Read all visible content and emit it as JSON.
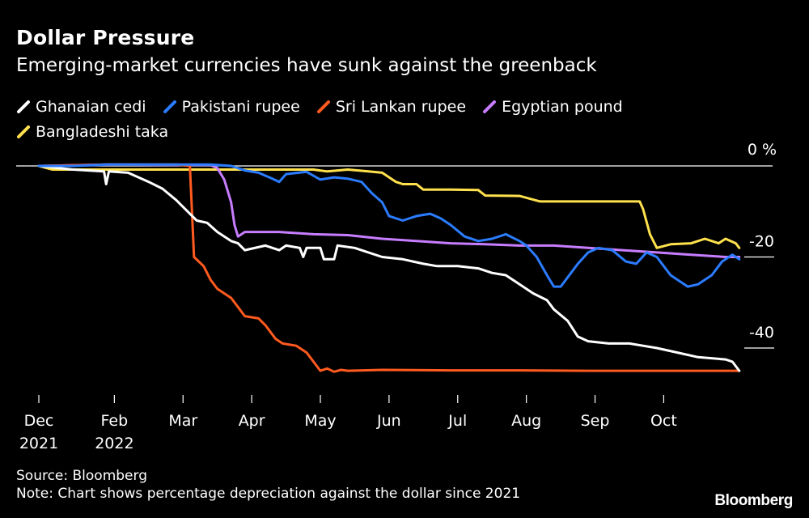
{
  "header": {
    "title": "Dollar Pressure",
    "subtitle": "Emerging-market currencies have sunk against the greenback"
  },
  "footer": {
    "source": "Source: Bloomberg",
    "note": "Note: Chart shows percentage depreciation against the dollar since 2021",
    "brand": "Bloomberg"
  },
  "chart_data": {
    "type": "line",
    "title": "Dollar Pressure",
    "subtitle": "Emerging-market currencies have sunk against the greenback",
    "xlabel": "",
    "ylabel": "%",
    "ylim": [
      -50,
      0
    ],
    "xlim": [
      0,
      10.45
    ],
    "grid": false,
    "legend_position": "top-left",
    "y_ticks": [
      {
        "value": 0,
        "label": "0 %"
      },
      {
        "value": -20,
        "label": "-20"
      },
      {
        "value": -40,
        "label": "-40"
      }
    ],
    "x_ticks": [
      {
        "value": 0,
        "label": "Dec",
        "sublabel": "2021"
      },
      {
        "value": 1.1,
        "label": "Feb",
        "sublabel": "2022"
      },
      {
        "value": 2.1,
        "label": "Mar",
        "sublabel": ""
      },
      {
        "value": 3.1,
        "label": "Apr",
        "sublabel": ""
      },
      {
        "value": 4.1,
        "label": "May",
        "sublabel": ""
      },
      {
        "value": 5.1,
        "label": "Jun",
        "sublabel": ""
      },
      {
        "value": 6.1,
        "label": "Jul",
        "sublabel": ""
      },
      {
        "value": 7.1,
        "label": "Aug",
        "sublabel": ""
      },
      {
        "value": 8.1,
        "label": "Sep",
        "sublabel": ""
      },
      {
        "value": 9.1,
        "label": "Oct",
        "sublabel": ""
      }
    ],
    "series": [
      {
        "name": "Ghanaian cedi",
        "color": "#ffffff",
        "points": [
          [
            0,
            0
          ],
          [
            0.5,
            -0.8
          ],
          [
            0.95,
            -1.2
          ],
          [
            0.98,
            -4
          ],
          [
            1.02,
            -1.2
          ],
          [
            1.3,
            -1.5
          ],
          [
            1.6,
            -3.5
          ],
          [
            1.8,
            -5
          ],
          [
            2.0,
            -7.5
          ],
          [
            2.1,
            -9
          ],
          [
            2.3,
            -12
          ],
          [
            2.45,
            -12.5
          ],
          [
            2.6,
            -14.5
          ],
          [
            2.8,
            -16.5
          ],
          [
            2.9,
            -17
          ],
          [
            3.0,
            -18.5
          ],
          [
            3.3,
            -17.5
          ],
          [
            3.5,
            -18.5
          ],
          [
            3.6,
            -17.5
          ],
          [
            3.8,
            -18
          ],
          [
            3.85,
            -20
          ],
          [
            3.9,
            -18
          ],
          [
            4.1,
            -18
          ],
          [
            4.15,
            -20.5
          ],
          [
            4.3,
            -20.5
          ],
          [
            4.35,
            -17.5
          ],
          [
            4.6,
            -18
          ],
          [
            4.8,
            -19
          ],
          [
            5.0,
            -20
          ],
          [
            5.3,
            -20.5
          ],
          [
            5.6,
            -21.5
          ],
          [
            5.8,
            -22
          ],
          [
            6.1,
            -22
          ],
          [
            6.4,
            -22.5
          ],
          [
            6.6,
            -23.5
          ],
          [
            6.8,
            -24
          ],
          [
            6.9,
            -25
          ],
          [
            7.0,
            -26
          ],
          [
            7.2,
            -28
          ],
          [
            7.4,
            -29.5
          ],
          [
            7.5,
            -31.5
          ],
          [
            7.7,
            -34
          ],
          [
            7.85,
            -37.5
          ],
          [
            8.0,
            -38.5
          ],
          [
            8.3,
            -39
          ],
          [
            8.6,
            -39
          ],
          [
            8.8,
            -39.5
          ],
          [
            9.0,
            -40
          ],
          [
            9.3,
            -41
          ],
          [
            9.6,
            -42
          ],
          [
            10.0,
            -42.5
          ],
          [
            10.1,
            -43
          ],
          [
            10.2,
            -45
          ]
        ]
      },
      {
        "name": "Pakistani rupee",
        "color": "#2b7cff",
        "points": [
          [
            0,
            0
          ],
          [
            0.5,
            0
          ],
          [
            1.0,
            0.3
          ],
          [
            1.5,
            0.3
          ],
          [
            2.0,
            0.3
          ],
          [
            2.5,
            0.3
          ],
          [
            2.8,
            0
          ],
          [
            3.0,
            -1
          ],
          [
            3.2,
            -1.5
          ],
          [
            3.4,
            -2.8
          ],
          [
            3.5,
            -3.5
          ],
          [
            3.6,
            -1.8
          ],
          [
            3.9,
            -1.3
          ],
          [
            4.1,
            -3
          ],
          [
            4.3,
            -2.5
          ],
          [
            4.5,
            -2.8
          ],
          [
            4.7,
            -3.5
          ],
          [
            4.85,
            -6
          ],
          [
            5.0,
            -8
          ],
          [
            5.1,
            -11
          ],
          [
            5.3,
            -12
          ],
          [
            5.5,
            -11
          ],
          [
            5.7,
            -10.5
          ],
          [
            5.85,
            -11.5
          ],
          [
            6.0,
            -13
          ],
          [
            6.2,
            -15.5
          ],
          [
            6.4,
            -16.5
          ],
          [
            6.6,
            -16
          ],
          [
            6.8,
            -15
          ],
          [
            7.0,
            -16.5
          ],
          [
            7.1,
            -17.5
          ],
          [
            7.25,
            -20
          ],
          [
            7.4,
            -24
          ],
          [
            7.5,
            -26.5
          ],
          [
            7.6,
            -26.5
          ],
          [
            7.75,
            -23.5
          ],
          [
            7.85,
            -21.5
          ],
          [
            8.0,
            -19
          ],
          [
            8.15,
            -18
          ],
          [
            8.35,
            -18.5
          ],
          [
            8.55,
            -21
          ],
          [
            8.7,
            -21.5
          ],
          [
            8.85,
            -19
          ],
          [
            9.0,
            -20
          ],
          [
            9.2,
            -24
          ],
          [
            9.45,
            -26.5
          ],
          [
            9.6,
            -26
          ],
          [
            9.8,
            -24
          ],
          [
            9.95,
            -21
          ],
          [
            10.1,
            -19.5
          ],
          [
            10.2,
            -20.5
          ]
        ]
      },
      {
        "name": "Sri Lankan rupee",
        "color": "#ff5a1f",
        "points": [
          [
            0,
            0
          ],
          [
            1.0,
            0.3
          ],
          [
            2.0,
            0.3
          ],
          [
            2.2,
            0
          ],
          [
            2.23,
            -10
          ],
          [
            2.26,
            -20
          ],
          [
            2.4,
            -22
          ],
          [
            2.5,
            -25
          ],
          [
            2.6,
            -27
          ],
          [
            2.8,
            -29
          ],
          [
            2.9,
            -31
          ],
          [
            3.0,
            -33
          ],
          [
            3.2,
            -33.5
          ],
          [
            3.3,
            -35
          ],
          [
            3.45,
            -38
          ],
          [
            3.55,
            -39
          ],
          [
            3.75,
            -39.5
          ],
          [
            3.9,
            -41
          ],
          [
            4.0,
            -43
          ],
          [
            4.1,
            -45
          ],
          [
            4.2,
            -44.5
          ],
          [
            4.3,
            -45.2
          ],
          [
            4.4,
            -44.8
          ],
          [
            4.5,
            -45
          ],
          [
            5.0,
            -44.8
          ],
          [
            6.0,
            -44.9
          ],
          [
            7.0,
            -44.9
          ],
          [
            8.0,
            -45
          ],
          [
            9.0,
            -45
          ],
          [
            10.0,
            -45
          ],
          [
            10.2,
            -45
          ]
        ]
      },
      {
        "name": "Egyptian pound",
        "color": "#c77dff",
        "points": [
          [
            0,
            0
          ],
          [
            1.0,
            0.3
          ],
          [
            2.0,
            0.2
          ],
          [
            2.5,
            0.2
          ],
          [
            2.6,
            -0.5
          ],
          [
            2.7,
            -3
          ],
          [
            2.8,
            -8
          ],
          [
            2.85,
            -13
          ],
          [
            2.9,
            -15.5
          ],
          [
            3.0,
            -14.5
          ],
          [
            3.5,
            -14.5
          ],
          [
            4.0,
            -15
          ],
          [
            4.5,
            -15.2
          ],
          [
            5.0,
            -16
          ],
          [
            5.5,
            -16.5
          ],
          [
            6.0,
            -17
          ],
          [
            6.5,
            -17.2
          ],
          [
            7.0,
            -17.5
          ],
          [
            7.5,
            -17.5
          ],
          [
            8.0,
            -18
          ],
          [
            8.5,
            -18.5
          ],
          [
            9.0,
            -19
          ],
          [
            9.5,
            -19.5
          ],
          [
            10.0,
            -20
          ],
          [
            10.2,
            -20
          ]
        ]
      },
      {
        "name": "Bangladeshi taka",
        "color": "#ffe14d",
        "points": [
          [
            0,
            0
          ],
          [
            0.2,
            -0.8
          ],
          [
            0.5,
            -0.8
          ],
          [
            1.0,
            -0.8
          ],
          [
            1.5,
            -0.8
          ],
          [
            2.0,
            -0.8
          ],
          [
            2.5,
            -0.8
          ],
          [
            3.0,
            -0.8
          ],
          [
            3.5,
            -0.8
          ],
          [
            4.0,
            -0.8
          ],
          [
            4.2,
            -1.2
          ],
          [
            4.5,
            -0.8
          ],
          [
            4.8,
            -1.2
          ],
          [
            5.0,
            -1.5
          ],
          [
            5.2,
            -3.5
          ],
          [
            5.3,
            -4
          ],
          [
            5.5,
            -4
          ],
          [
            5.6,
            -5.2
          ],
          [
            6.0,
            -5.2
          ],
          [
            6.4,
            -5.3
          ],
          [
            6.5,
            -6.5
          ],
          [
            7.0,
            -6.6
          ],
          [
            7.3,
            -7.8
          ],
          [
            8.0,
            -7.8
          ],
          [
            8.5,
            -7.8
          ],
          [
            8.75,
            -7.8
          ],
          [
            8.8,
            -9.5
          ],
          [
            8.9,
            -15
          ],
          [
            9.0,
            -18
          ],
          [
            9.2,
            -17.2
          ],
          [
            9.5,
            -17
          ],
          [
            9.7,
            -16
          ],
          [
            9.9,
            -17
          ],
          [
            10.0,
            -16
          ],
          [
            10.15,
            -17
          ],
          [
            10.2,
            -18
          ]
        ]
      }
    ]
  }
}
